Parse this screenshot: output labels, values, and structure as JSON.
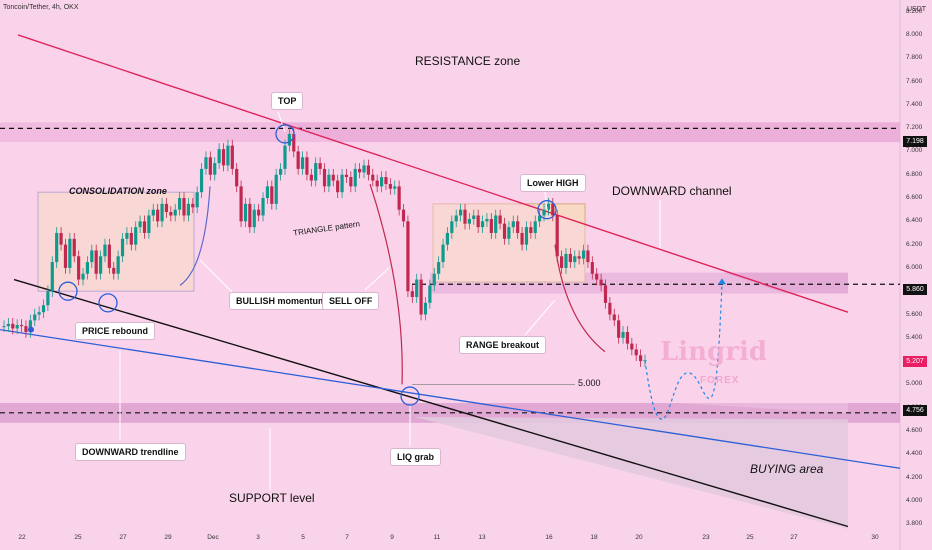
{
  "header": {
    "symbol": "Toncoin/Tether, 4h, OKX",
    "currency": "USDT"
  },
  "watermark": {
    "brand": "Lingrid",
    "sub": "FOREX"
  },
  "labels": {
    "resistance_zone": "RESISTANCE zone",
    "top": "TOP",
    "consolidation": "CONSOLIDATION zone",
    "triangle": "TRIANGLE pattern",
    "bullish": "BULLISH momentum",
    "sell_off": "SELL OFF",
    "lower_high": "Lower HIGH",
    "downward_channel": "DOWNWARD channel",
    "range_breakout": "RANGE breakout",
    "price_rebound": "PRICE rebound",
    "downward_trendline": "DOWNWARD trendline",
    "liq_grab": "LIQ grab",
    "support_level": "SUPPORT level",
    "buying_area": "BUYING area",
    "level_5000": "5.000"
  },
  "price_tags": [
    {
      "value": "7.198",
      "color": "#111111"
    },
    {
      "value": "5.860",
      "color": "#111111"
    },
    {
      "value": "5.207",
      "color": "#e91e63"
    },
    {
      "value": "4.756",
      "color": "#111111"
    }
  ],
  "chart_data": {
    "type": "candlestick",
    "y_axis": {
      "range": [
        3.75,
        8.3
      ],
      "ticks": [
        "8.200",
        "8.000",
        "7.800",
        "7.600",
        "7.400",
        "7.200",
        "7.000",
        "6.800",
        "6.600",
        "6.400",
        "6.200",
        "6.000",
        "5.800",
        "5.600",
        "5.400",
        "5.200",
        "5.000",
        "4.800",
        "4.600",
        "4.400",
        "4.200",
        "4.000",
        "3.800"
      ]
    },
    "x_axis": {
      "ticks": [
        "22",
        "25",
        "27",
        "29",
        "Dec",
        "3",
        "5",
        "7",
        "9",
        "11",
        "13",
        "16",
        "18",
        "20",
        "23",
        "25",
        "27",
        "30"
      ]
    },
    "levels": {
      "resistance": 7.198,
      "range_high": 5.86,
      "last_price": 5.207,
      "support": 4.756
    },
    "closes": [
      5.5,
      5.52,
      5.48,
      5.51,
      5.5,
      5.45,
      5.55,
      5.6,
      5.62,
      5.68,
      5.8,
      6.05,
      6.3,
      6.2,
      6.0,
      6.25,
      6.1,
      5.9,
      5.95,
      6.05,
      6.15,
      5.95,
      6.1,
      6.2,
      6.0,
      5.95,
      6.1,
      6.25,
      6.3,
      6.2,
      6.35,
      6.4,
      6.3,
      6.45,
      6.5,
      6.4,
      6.55,
      6.48,
      6.45,
      6.5,
      6.6,
      6.45,
      6.55,
      6.52,
      6.65,
      6.85,
      6.95,
      6.8,
      6.9,
      7.02,
      6.88,
      7.05,
      6.85,
      6.7,
      6.4,
      6.55,
      6.35,
      6.5,
      6.45,
      6.6,
      6.7,
      6.55,
      6.8,
      6.85,
      7.05,
      7.15,
      7.0,
      6.85,
      6.95,
      6.8,
      6.75,
      6.9,
      6.85,
      6.7,
      6.8,
      6.75,
      6.65,
      6.8,
      6.78,
      6.7,
      6.85,
      6.82,
      6.88,
      6.8,
      6.75,
      6.7,
      6.78,
      6.72,
      6.68,
      6.7,
      6.5,
      6.4,
      5.8,
      5.75,
      5.9,
      5.6,
      5.7,
      5.85,
      5.95,
      6.05,
      6.2,
      6.3,
      6.4,
      6.45,
      6.5,
      6.38,
      6.42,
      6.45,
      6.35,
      6.4,
      6.42,
      6.3,
      6.45,
      6.38,
      6.25,
      6.35,
      6.4,
      6.3,
      6.2,
      6.35,
      6.3,
      6.4,
      6.45,
      6.5,
      6.55,
      6.45,
      6.1,
      6.0,
      6.12,
      6.05,
      6.1,
      6.08,
      6.15,
      6.05,
      5.95,
      5.9,
      5.85,
      5.7,
      5.6,
      5.55,
      5.4,
      5.45,
      5.35,
      5.3,
      5.25,
      5.2,
      5.207
    ],
    "path_projection": [
      5.207,
      4.7,
      5.1,
      4.9,
      5.86
    ]
  }
}
